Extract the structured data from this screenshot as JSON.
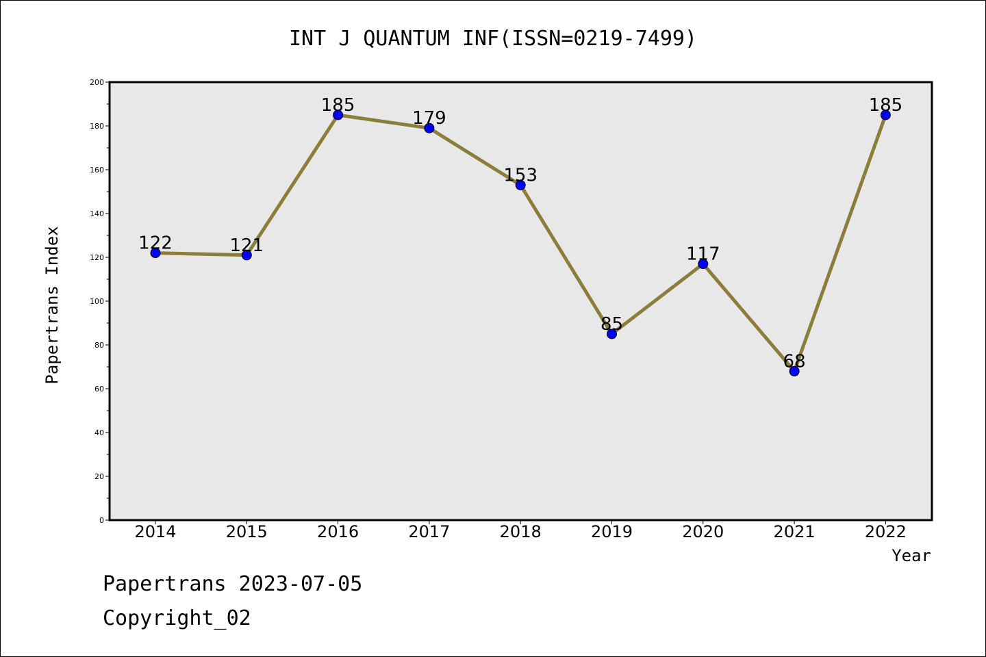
{
  "chart_data": {
    "type": "line",
    "title": "INT J QUANTUM INF(ISSN=0219-7499)",
    "xlabel": "Year",
    "ylabel": "Papertrans Index",
    "categories": [
      "2014",
      "2015",
      "2016",
      "2017",
      "2018",
      "2019",
      "2020",
      "2021",
      "2022"
    ],
    "series": [
      {
        "values": [
          122,
          121,
          185,
          179,
          153,
          85,
          117,
          68,
          185
        ]
      }
    ],
    "data_labels": [
      "122",
      "121",
      "185",
      "179",
      "153",
      "85",
      "117",
      "68",
      "185"
    ],
    "ylim": [
      0,
      200
    ],
    "yticks": [
      "0",
      "20",
      "40",
      "60",
      "80",
      "100",
      "120",
      "140",
      "160",
      "180",
      "200"
    ],
    "grid": false,
    "line_color": "#8b7d3a",
    "marker_color": "#0000ff",
    "plot_background": "#e8e8e8"
  },
  "footer": {
    "line1": "Papertrans 2023-07-05",
    "line2": "Copyright_02"
  }
}
